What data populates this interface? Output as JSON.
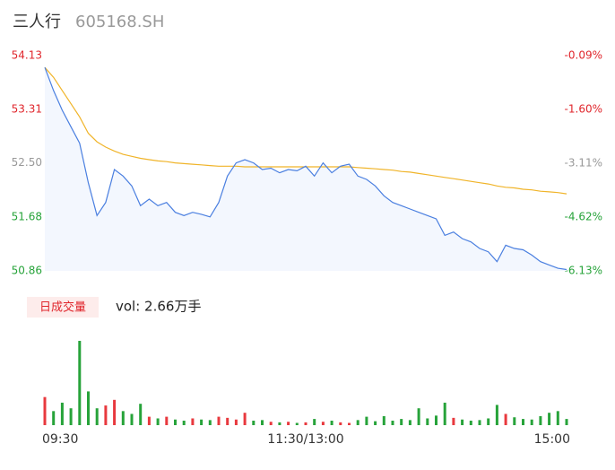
{
  "chart_data": {
    "type": "intraday",
    "title": "三人行",
    "subtitle": "605168.SH",
    "volume_legend": "日成交量",
    "volume_label": "vol: 2.66万手",
    "x": [
      0,
      4,
      8,
      12,
      16,
      20,
      24,
      28,
      32,
      36,
      40,
      44,
      48,
      52,
      56,
      60,
      64,
      68,
      72,
      76,
      80,
      84,
      88,
      92,
      96,
      100,
      104,
      108,
      112,
      116,
      120,
      124,
      128,
      132,
      136,
      140,
      144,
      148,
      152,
      156,
      160,
      164,
      168,
      172,
      176,
      180,
      184,
      188,
      192,
      196,
      200,
      204,
      208,
      212,
      216,
      220,
      224,
      228,
      232,
      236,
      240
    ],
    "xlim": [
      0,
      240
    ],
    "xticks": [
      {
        "value": 0,
        "label": "09:30"
      },
      {
        "value": 120,
        "label": "11:30/13:00"
      },
      {
        "value": 240,
        "label": "15:00"
      }
    ],
    "series": [
      {
        "name": "price",
        "color": "#4a7fe0",
        "values": [
          53.95,
          53.6,
          53.3,
          53.05,
          52.8,
          52.2,
          51.7,
          51.9,
          52.4,
          52.3,
          52.15,
          51.85,
          51.95,
          51.85,
          51.9,
          51.75,
          51.7,
          51.75,
          51.72,
          51.68,
          51.9,
          52.3,
          52.5,
          52.55,
          52.5,
          52.4,
          52.42,
          52.35,
          52.4,
          52.38,
          52.45,
          52.3,
          52.5,
          52.35,
          52.45,
          52.48,
          52.3,
          52.25,
          52.15,
          52.0,
          51.9,
          51.85,
          51.8,
          51.75,
          51.7,
          51.65,
          51.4,
          51.45,
          51.35,
          51.3,
          51.2,
          51.15,
          51.0,
          51.25,
          51.2,
          51.18,
          51.1,
          51.0,
          50.95,
          50.9,
          50.88
        ]
      },
      {
        "name": "average",
        "color": "#f0b429",
        "values": [
          53.95,
          53.8,
          53.6,
          53.4,
          53.2,
          52.95,
          52.82,
          52.74,
          52.68,
          52.63,
          52.6,
          52.57,
          52.55,
          52.53,
          52.52,
          52.5,
          52.49,
          52.48,
          52.47,
          52.46,
          52.45,
          52.45,
          52.45,
          52.44,
          52.44,
          52.44,
          52.44,
          52.44,
          52.44,
          52.44,
          52.44,
          52.44,
          52.44,
          52.44,
          52.44,
          52.44,
          52.43,
          52.42,
          52.41,
          52.4,
          52.39,
          52.37,
          52.36,
          52.34,
          52.32,
          52.3,
          52.28,
          52.26,
          52.24,
          52.22,
          52.2,
          52.18,
          52.15,
          52.13,
          52.12,
          52.1,
          52.09,
          52.07,
          52.06,
          52.05,
          52.03
        ]
      }
    ],
    "volume": [
      500,
      250,
      400,
      300,
      1500,
      600,
      300,
      350,
      450,
      250,
      200,
      380,
      150,
      120,
      150,
      100,
      80,
      120,
      100,
      90,
      150,
      130,
      100,
      220,
      80,
      90,
      60,
      50,
      60,
      40,
      50,
      110,
      60,
      80,
      50,
      40,
      90,
      150,
      70,
      160,
      80,
      110,
      90,
      300,
      120,
      170,
      400,
      130,
      100,
      80,
      90,
      120,
      360,
      200,
      140,
      110,
      100,
      160,
      220,
      250,
      110
    ],
    "up_color": "#e8393e",
    "down_color": "#27a33a",
    "ylim": [
      50.86,
      54.13
    ],
    "yticks": [
      54.13,
      53.31,
      {
        "value": 52.5,
        "label": "52.50"
      },
      51.68,
      50.86
    ],
    "y2lim": [
      -6.13,
      -0.09
    ],
    "y2ticks": [
      {
        "value": -0.09,
        "label": "-0.09%"
      },
      {
        "value": -1.6,
        "label": "-1.60%"
      },
      {
        "value": -3.11,
        "label": "-3.11%"
      },
      {
        "value": -4.62,
        "label": "-4.62%"
      },
      {
        "value": -6.13,
        "label": "-6.13%"
      }
    ],
    "tick_colors": [
      "#e0262c",
      "#e0262c",
      "#999999",
      "#27a33a",
      "#27a33a"
    ]
  }
}
